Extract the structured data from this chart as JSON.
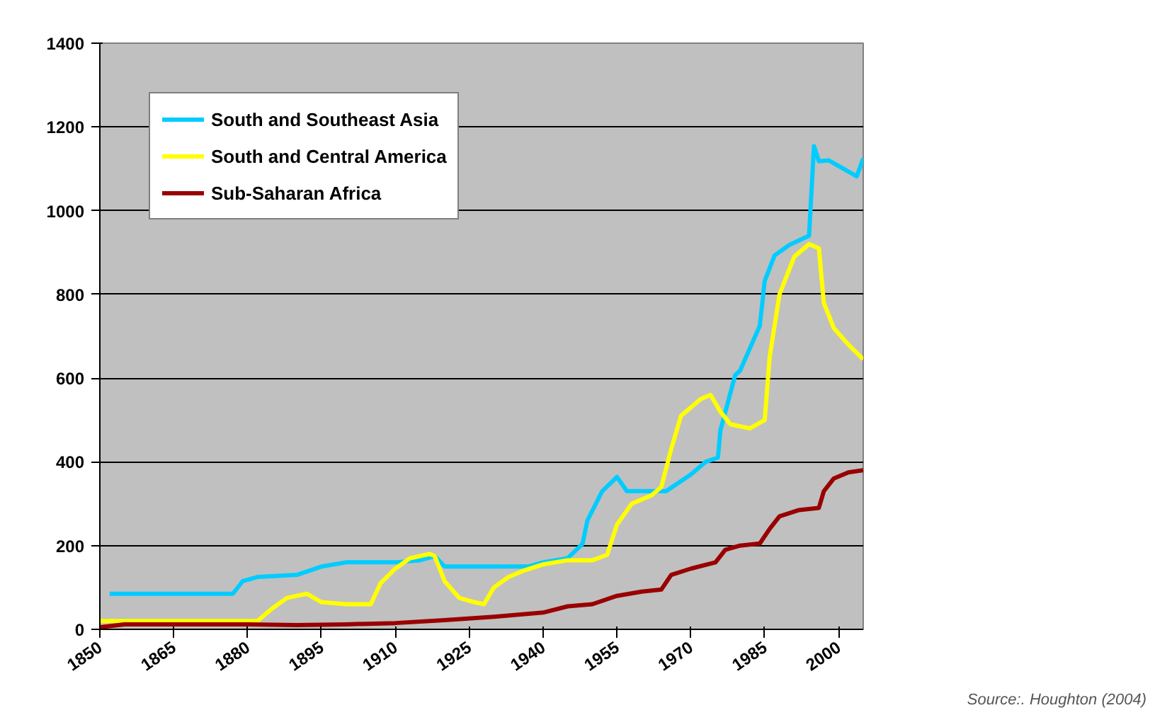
{
  "chart_data": {
    "type": "line",
    "xlim": [
      1850,
      2005
    ],
    "xticks": [
      1850,
      1865,
      1880,
      1895,
      1910,
      1925,
      1940,
      1955,
      1970,
      1985,
      2000
    ],
    "ylim": [
      0,
      1400
    ],
    "yticks": [
      0,
      200,
      400,
      600,
      800,
      1000,
      1200,
      1400
    ],
    "grid": "y",
    "legend": "top left",
    "marker": "none",
    "line_style": "solid",
    "annotations": [
      "Source:. Houghton (2004)"
    ],
    "series": [
      {
        "name": "South and Southeast Asia",
        "color": "#00ccff",
        "x": [
          1852,
          1877,
          1879,
          1882,
          1890,
          1895,
          1900,
          1910,
          1915,
          1918,
          1920,
          1925,
          1937,
          1940,
          1945,
          1948,
          1949,
          1952,
          1955,
          1957,
          1962,
          1965,
          1970,
          1973,
          1975.5,
          1976,
          1979,
          1980,
          1984,
          1985,
          1987,
          1990,
          1994,
          1995,
          1996,
          1998,
          2001,
          2003.7,
          2005
        ],
        "values": [
          85,
          85,
          115,
          125,
          130,
          150,
          160,
          160,
          165,
          175,
          150,
          150,
          150,
          160,
          170,
          204,
          260,
          330,
          364,
          330,
          330,
          330,
          370,
          400,
          410,
          475,
          607,
          618,
          725,
          832,
          893,
          918,
          940,
          1154,
          1118,
          1120,
          1100,
          1082,
          1125
        ]
      },
      {
        "name": "South and Central America",
        "color": "#ffff00",
        "x": [
          1850,
          1882,
          1885,
          1888,
          1892,
          1895,
          1900,
          1905,
          1907,
          1910,
          1913,
          1917,
          1918,
          1920,
          1923,
          1926,
          1928,
          1930,
          1933,
          1936,
          1940,
          1945,
          1950,
          1953,
          1955,
          1958,
          1962,
          1964,
          1966,
          1968,
          1972,
          1974,
          1976,
          1978,
          1982,
          1985,
          1986,
          1988,
          1991,
          1994,
          1996,
          1997,
          1999,
          2002,
          2005
        ],
        "values": [
          20,
          20,
          50,
          75,
          85,
          65,
          60,
          60,
          110,
          145,
          170,
          180,
          175,
          115,
          75,
          65,
          60,
          100,
          125,
          140,
          155,
          165,
          165,
          178,
          250,
          300,
          320,
          340,
          430,
          510,
          550,
          560,
          520,
          490,
          480,
          500,
          650,
          800,
          890,
          920,
          910,
          780,
          720,
          680,
          645
        ]
      },
      {
        "name": "Sub-Saharan Africa",
        "color": "#990000",
        "x": [
          1850,
          1855,
          1880,
          1890,
          1900,
          1910,
          1920,
          1930,
          1940,
          1945,
          1950,
          1955,
          1960,
          1964,
          1966,
          1970,
          1975,
          1977,
          1980,
          1984,
          1986,
          1988,
          1992,
          1996,
          1997,
          1999,
          2002,
          2005
        ],
        "values": [
          5,
          12,
          12,
          10,
          12,
          15,
          22,
          30,
          40,
          55,
          60,
          80,
          90,
          95,
          130,
          145,
          160,
          190,
          200,
          205,
          240,
          270,
          285,
          290,
          330,
          360,
          375,
          380
        ]
      }
    ]
  }
}
